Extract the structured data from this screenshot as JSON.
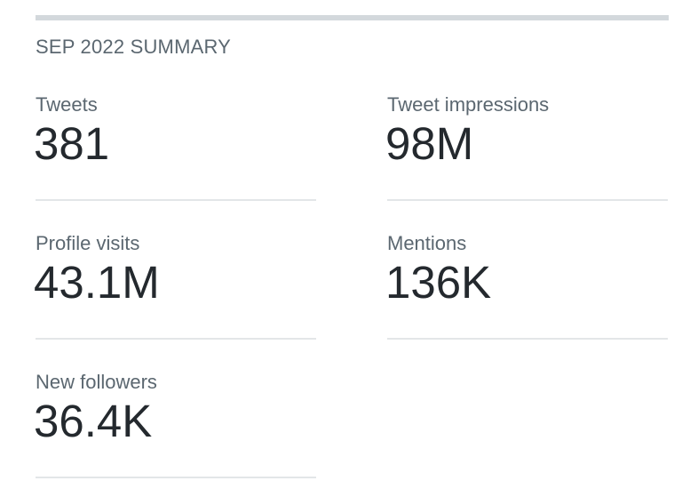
{
  "summary": {
    "title": "SEP 2022 SUMMARY",
    "stats": [
      {
        "label": "Tweets",
        "value": "381"
      },
      {
        "label": "Tweet impressions",
        "value": "98M"
      },
      {
        "label": "Profile visits",
        "value": "43.1M"
      },
      {
        "label": "Mentions",
        "value": "136K"
      },
      {
        "label": "New followers",
        "value": "36.4K"
      }
    ]
  }
}
